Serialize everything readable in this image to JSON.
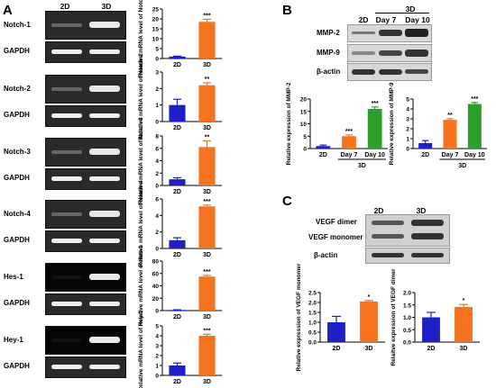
{
  "panels": {
    "A": "A",
    "B": "B",
    "C": "C"
  },
  "a_header": {
    "col1": "2D",
    "col2": "3D"
  },
  "a_rows": [
    {
      "gene": "Notch-1",
      "ref": "GAPDH",
      "ylabel": "Relative mRNA level\nof Notch-1",
      "sig": "***"
    },
    {
      "gene": "Notch-2",
      "ref": "GAPDH",
      "ylabel": "Relative mRNA level\nof Notch-2",
      "sig": "**"
    },
    {
      "gene": "Notch-3",
      "ref": "GAPDH",
      "ylabel": "Relative mRNA level\nof Notch-3",
      "sig": "**"
    },
    {
      "gene": "Notch-4",
      "ref": "GAPDH",
      "ylabel": "Relative mRNA level\nof Notch-4",
      "sig": "***"
    },
    {
      "gene": "Hes-1",
      "ref": "GAPDH",
      "ylabel": "Relative mRNA level\nof Hes-1",
      "sig": "***"
    },
    {
      "gene": "Hey-1",
      "ref": "GAPDH",
      "ylabel": "Relative mRNA level\nof Hey-1",
      "sig": "***"
    }
  ],
  "b_header": {
    "col1": "2D",
    "group": "3D",
    "col2": "Day 7",
    "col3": "Day 10"
  },
  "b_blots": [
    "MMP-2",
    "MMP-9",
    "β-actin"
  ],
  "c_header": {
    "col1": "2D",
    "col2": "3D"
  },
  "c_blots": [
    "VEGF dimer",
    "VEGF monomer",
    "β-actin"
  ],
  "colors": {
    "blue": "#1f1fc8",
    "orange": "#f5731f",
    "green": "#2aa02a"
  },
  "chart_data": [
    {
      "panel": "A",
      "type": "bar",
      "categories": [
        "2D",
        "3D"
      ],
      "values": [
        1.0,
        18.5
      ],
      "errors": [
        0.2,
        1.3
      ],
      "ylim": [
        0,
        25
      ],
      "yticks": [
        0,
        5,
        10,
        15,
        20,
        25
      ],
      "ylabel": "Relative mRNA level of Notch-1",
      "annotations": [
        "",
        "***"
      ]
    },
    {
      "panel": "A",
      "type": "bar",
      "categories": [
        "2D",
        "3D"
      ],
      "values": [
        1.0,
        2.2
      ],
      "errors": [
        0.35,
        0.15
      ],
      "ylim": [
        0,
        3
      ],
      "yticks": [
        0,
        1,
        2,
        3
      ],
      "ylabel": "Relative mRNA level of Notch-2",
      "annotations": [
        "",
        "**"
      ]
    },
    {
      "panel": "A",
      "type": "bar",
      "categories": [
        "2D",
        "3D"
      ],
      "values": [
        1.0,
        6.2
      ],
      "errors": [
        0.25,
        1.0
      ],
      "ylim": [
        0,
        8
      ],
      "yticks": [
        0,
        2,
        4,
        6,
        8
      ],
      "ylabel": "Relative mRNA level of Notch-3",
      "annotations": [
        "",
        "**"
      ]
    },
    {
      "panel": "A",
      "type": "bar",
      "categories": [
        "2D",
        "3D"
      ],
      "values": [
        1.0,
        5.1
      ],
      "errors": [
        0.3,
        0.15
      ],
      "ylim": [
        0,
        6
      ],
      "yticks": [
        0,
        2,
        4,
        6
      ],
      "ylabel": "Relative mRNA level of Notch-4",
      "annotations": [
        "",
        "***"
      ]
    },
    {
      "panel": "A",
      "type": "bar",
      "categories": [
        "2D",
        "3D"
      ],
      "values": [
        1.0,
        55
      ],
      "errors": [
        0.3,
        2.0
      ],
      "ylim": [
        0,
        80
      ],
      "yticks": [
        0,
        20,
        40,
        60,
        80
      ],
      "ylabel": "Relative mRNA level of Hes-1",
      "annotations": [
        "",
        "***"
      ]
    },
    {
      "panel": "A",
      "type": "bar",
      "categories": [
        "2D",
        "3D"
      ],
      "values": [
        1.0,
        4.0
      ],
      "errors": [
        0.25,
        0.15
      ],
      "ylim": [
        0,
        5
      ],
      "yticks": [
        0,
        1,
        2,
        3,
        4,
        5
      ],
      "ylabel": "Relative mRNA level of Hey-1",
      "annotations": [
        "",
        "***"
      ]
    },
    {
      "panel": "B",
      "type": "bar",
      "categories": [
        "2D",
        "Day 7",
        "Day 10"
      ],
      "group_label": "3D",
      "values": [
        1.0,
        5.0,
        16.0
      ],
      "errors": [
        0.4,
        0.5,
        0.8
      ],
      "ylim": [
        0,
        20
      ],
      "yticks": [
        0,
        5,
        10,
        15,
        20
      ],
      "ylabel": "Relative expression of MMP-2",
      "annotations": [
        "",
        "***",
        "***"
      ]
    },
    {
      "panel": "B",
      "type": "bar",
      "categories": [
        "2D",
        "Day 7",
        "Day 10"
      ],
      "group_label": "3D",
      "values": [
        0.55,
        2.9,
        4.5
      ],
      "errors": [
        0.25,
        0.12,
        0.15
      ],
      "ylim": [
        0,
        5
      ],
      "yticks": [
        0,
        1,
        2,
        3,
        4,
        5
      ],
      "ylabel": "Relative expression of MMP-9",
      "annotations": [
        "",
        "**",
        "***"
      ]
    },
    {
      "panel": "C",
      "type": "bar",
      "categories": [
        "2D",
        "3D"
      ],
      "values": [
        1.0,
        2.05
      ],
      "errors": [
        0.3,
        0.05
      ],
      "ylim": [
        0,
        2.5
      ],
      "yticks": [
        0.0,
        0.5,
        1.0,
        1.5,
        2.0,
        2.5
      ],
      "ylabel": "Relative expression of VEGF monomer",
      "annotations": [
        "",
        "*"
      ]
    },
    {
      "panel": "C",
      "type": "bar",
      "categories": [
        "2D",
        "3D"
      ],
      "values": [
        1.0,
        1.42
      ],
      "errors": [
        0.2,
        0.1
      ],
      "ylim": [
        0,
        2.0
      ],
      "yticks": [
        0.0,
        0.5,
        1.0,
        1.5,
        2.0
      ],
      "ylabel": "Relaitve expression of VEGF dimer",
      "annotations": [
        "",
        "*"
      ]
    }
  ]
}
